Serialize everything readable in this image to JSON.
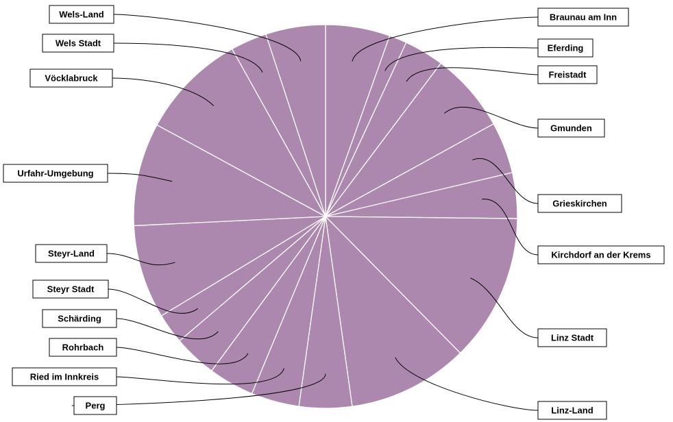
{
  "chart_data": {
    "type": "pie",
    "title": "",
    "color": "#ac88ae",
    "start_angle_deg": 0,
    "direction": "clockwise",
    "legend": "none",
    "labels_style": "callout boxes with leader lines",
    "slices": [
      {
        "label": "Braunau am Inn",
        "value": 0.055
      },
      {
        "label": "Eferding",
        "value": 0.015
      },
      {
        "label": "Freistadt",
        "value": 0.034
      },
      {
        "label": "Gmunden",
        "value": 0.068
      },
      {
        "label": "Grieskirchen",
        "value": 0.044
      },
      {
        "label": "Kirchdorf an der Krems",
        "value": 0.039
      },
      {
        "label": "Linz Stadt",
        "value": 0.126
      },
      {
        "label": "Linz-Land",
        "value": 0.103
      },
      {
        "label": "Perg",
        "value": 0.045
      },
      {
        "label": "Ried im Innkreis",
        "value": 0.041
      },
      {
        "label": "Rohrbach",
        "value": 0.039
      },
      {
        "label": "Schärding",
        "value": 0.037
      },
      {
        "label": "Steyr Stadt",
        "value": 0.026
      },
      {
        "label": "Steyr-Land",
        "value": 0.08
      },
      {
        "label": "Urfahr-Umgebung",
        "value": 0.088
      },
      {
        "label": "Vöcklabruck",
        "value": 0.091
      },
      {
        "label": "Wels Stadt",
        "value": 0.031
      },
      {
        "label": "Wels-Land",
        "value": 0.051
      }
    ]
  }
}
